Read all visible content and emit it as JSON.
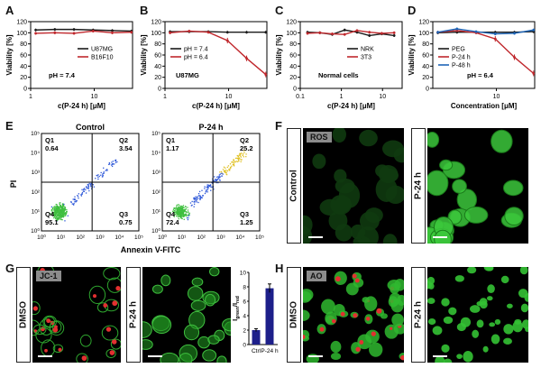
{
  "panel_letters": [
    "A",
    "B",
    "C",
    "D",
    "E",
    "F",
    "G",
    "H"
  ],
  "chart_data": [
    {
      "id": "A",
      "type": "line",
      "xscale": "log",
      "xlim": [
        1,
        40
      ],
      "ylim": [
        0,
        120
      ],
      "xticks": [
        "1",
        "10"
      ],
      "yticks": [
        "0",
        "20",
        "40",
        "60",
        "80",
        "100",
        "120"
      ],
      "xlabel": "c(P-24 h) [μM]",
      "ylabel": "Viability [%]",
      "annotation": "pH = 7.4",
      "legend_position": "center-right",
      "x": [
        1.2,
        2.4,
        4.8,
        9.6,
        19.2,
        38.4
      ],
      "series": [
        {
          "name": "U87MG",
          "color": "#1a1a1a",
          "values": [
            105,
            106,
            106,
            105,
            104,
            103
          ]
        },
        {
          "name": "B16F10",
          "color": "#c0282d",
          "values": [
            99,
            100,
            99,
            103,
            100,
            101
          ]
        }
      ]
    },
    {
      "id": "B",
      "type": "line",
      "xscale": "log",
      "xlim": [
        1,
        40
      ],
      "ylim": [
        0,
        120
      ],
      "xticks": [
        "1",
        "10"
      ],
      "yticks": [
        "0",
        "20",
        "40",
        "60",
        "80",
        "100",
        "120"
      ],
      "xlabel": "c(P-24 h) [μM]",
      "ylabel": "Viability [%]",
      "annotation": "U87MG",
      "legend_position": "center-left",
      "x": [
        1.2,
        2.4,
        4.8,
        9.6,
        19.2,
        38.4
      ],
      "series": [
        {
          "name": "pH = 7.4",
          "color": "#1a1a1a",
          "values": [
            102,
            102,
            102,
            101,
            101,
            101
          ]
        },
        {
          "name": "pH = 6.4",
          "color": "#c0282d",
          "values": [
            100,
            103,
            101,
            86,
            54,
            25
          ]
        }
      ]
    },
    {
      "id": "C",
      "type": "line",
      "xscale": "log",
      "xlim": [
        0.1,
        30
      ],
      "ylim": [
        0,
        120
      ],
      "xticks": [
        "0.1",
        "1",
        "10"
      ],
      "yticks": [
        "0",
        "20",
        "40",
        "60",
        "80",
        "100",
        "120"
      ],
      "xlabel": "c(P-24 h) [μM]",
      "ylabel": "Viability [%]",
      "annotation": "Normal cells",
      "legend_position": "center-right",
      "x": [
        0.15,
        0.3,
        0.6,
        1.2,
        2.4,
        4.8,
        9.6,
        19.2
      ],
      "series": [
        {
          "name": "NRK",
          "color": "#1a1a1a",
          "values": [
            101,
            100,
            97,
            105,
            101,
            95,
            98,
            95
          ]
        },
        {
          "name": "3T3",
          "color": "#c0282d",
          "values": [
            99,
            100,
            98,
            97,
            104,
            101,
            99,
            100
          ]
        }
      ]
    },
    {
      "id": "D",
      "type": "line",
      "xscale": "log",
      "xlim": [
        1,
        40
      ],
      "ylim": [
        0,
        120
      ],
      "xticks": [
        "10"
      ],
      "yticks": [
        "0",
        "20",
        "40",
        "60",
        "80",
        "100",
        "120"
      ],
      "xlabel": "Concentration [μM]",
      "ylabel": "Viability [%]",
      "annotation": "pH = 6.4",
      "legend_position": "center-left",
      "x": [
        1.2,
        2.4,
        4.8,
        9.6,
        19.2,
        38.4
      ],
      "series": [
        {
          "name": "PEG",
          "color": "#1a1a1a",
          "values": [
            100,
            101,
            101,
            101,
            101,
            102
          ]
        },
        {
          "name": "P-24 h",
          "color": "#c0282d",
          "values": [
            101,
            104,
            100,
            89,
            56,
            27
          ]
        },
        {
          "name": "P-48 h",
          "color": "#1f66b8",
          "values": [
            101,
            107,
            102,
            98,
            99,
            105
          ]
        }
      ]
    },
    {
      "id": "G-bar",
      "type": "bar",
      "categories": [
        "Ctrl",
        "P-24 h"
      ],
      "values": [
        2.0,
        7.8
      ],
      "errors": [
        0.2,
        0.6
      ],
      "ylim": [
        0,
        10
      ],
      "yticks": [
        "0",
        "2",
        "4",
        "6",
        "8",
        "10"
      ],
      "ylabel": "I",
      "ylabel_sub_a": "green",
      "ylabel_sep": "/I",
      "ylabel_sub_b": "red",
      "bar_color": "#1d1f8a"
    }
  ],
  "flow": {
    "xlabel": "Annexin V-FITC",
    "ylabel": "PI",
    "ticks": [
      "10⁰",
      "10¹",
      "10²",
      "10³",
      "10⁴",
      "10⁵"
    ],
    "plots": [
      {
        "title": "Control",
        "q1": "Q1",
        "q1v": "0.64",
        "q2": "Q2",
        "q2v": "3.54",
        "q3": "Q3",
        "q3v": "0.75",
        "q4": "Q4",
        "q4v": "95.1"
      },
      {
        "title": "P-24 h",
        "q1": "Q1",
        "q1v": "1.17",
        "q2": "Q2",
        "q2v": "25.2",
        "q3": "Q3",
        "q3v": "1.25",
        "q4": "Q4",
        "q4v": "72.4"
      }
    ]
  },
  "images": {
    "F": {
      "tag": "ROS",
      "left_label": "Control",
      "right_label": "P-24 h"
    },
    "G": {
      "tag": "JC-1",
      "left_label": "DMSO",
      "right_label": "P-24 h"
    },
    "H": {
      "tag": "AO",
      "left_label": "DMSO",
      "right_label": "P-24 h"
    }
  }
}
